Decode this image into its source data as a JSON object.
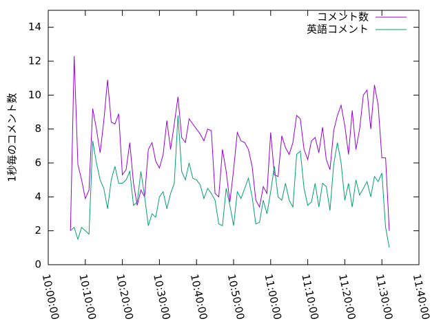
{
  "chart_data": {
    "type": "line",
    "ylabel": "1秒毎のコメント数",
    "x": [
      "10:06:00",
      "10:07:00",
      "10:08:00",
      "10:09:00",
      "10:10:00",
      "10:11:00",
      "10:12:00",
      "10:13:00",
      "10:14:00",
      "10:15:00",
      "10:16:00",
      "10:17:00",
      "10:18:00",
      "10:19:00",
      "10:20:00",
      "10:21:00",
      "10:22:00",
      "10:23:00",
      "10:24:00",
      "10:25:00",
      "10:26:00",
      "10:27:00",
      "10:28:00",
      "10:29:00",
      "10:30:00",
      "10:31:00",
      "10:32:00",
      "10:33:00",
      "10:34:00",
      "10:35:00",
      "10:36:00",
      "10:37:00",
      "10:38:00",
      "10:39:00",
      "10:40:00",
      "10:41:00",
      "10:42:00",
      "10:43:00",
      "10:44:00",
      "10:45:00",
      "10:46:00",
      "10:47:00",
      "10:48:00",
      "10:49:00",
      "10:50:00",
      "10:51:00",
      "10:52:00",
      "10:53:00",
      "10:54:00",
      "10:55:00",
      "10:56:00",
      "10:57:00",
      "10:58:00",
      "10:59:00",
      "11:00:00",
      "11:01:00",
      "11:02:00",
      "11:03:00",
      "11:04:00",
      "11:05:00",
      "11:06:00",
      "11:07:00",
      "11:08:00",
      "11:09:00",
      "11:10:00",
      "11:11:00",
      "11:12:00",
      "11:13:00",
      "11:14:00",
      "11:15:00",
      "11:16:00",
      "11:17:00",
      "11:18:00",
      "11:19:00",
      "11:20:00",
      "11:21:00",
      "11:22:00",
      "11:23:00",
      "11:24:00",
      "11:25:00",
      "11:26:00",
      "11:27:00",
      "11:28:00",
      "11:29:00",
      "11:30:00",
      "11:31:00",
      "11:32:00"
    ],
    "series": [
      {
        "name": "コメント数",
        "color": "#9400d3",
        "values": [
          2.0,
          12.3,
          5.9,
          5.0,
          3.9,
          4.4,
          9.2,
          8.0,
          6.6,
          8.5,
          10.9,
          8.4,
          8.3,
          8.9,
          5.3,
          5.6,
          7.2,
          4.8,
          3.5,
          4.4,
          4.0,
          6.8,
          7.2,
          6.1,
          5.7,
          6.5,
          8.5,
          6.8,
          8.3,
          9.9,
          7.5,
          7.2,
          8.6,
          8.3,
          8.0,
          7.7,
          7.3,
          8.0,
          7.9,
          4.2,
          4.0,
          6.8,
          5.5,
          3.7,
          5.6,
          7.8,
          7.3,
          7.2,
          6.8,
          5.8,
          3.8,
          3.4,
          4.6,
          4.2,
          7.8,
          5.3,
          5.2,
          7.6,
          6.9,
          6.5,
          7.2,
          8.8,
          8.6,
          6.8,
          6.2,
          7.3,
          7.5,
          6.6,
          8.1,
          6.2,
          5.6,
          7.9,
          8.8,
          9.4,
          8.2,
          6.5,
          9.1,
          6.8,
          8.0,
          10.0,
          10.3,
          8.0,
          10.6,
          9.4,
          6.3,
          6.3,
          2.0
        ]
      },
      {
        "name": "英語コメント",
        "color": "#009e73",
        "values": [
          2.0,
          2.2,
          1.5,
          2.2,
          2.0,
          1.8,
          7.3,
          6.0,
          5.0,
          4.5,
          3.3,
          5.0,
          5.8,
          4.8,
          4.8,
          5.0,
          5.5,
          3.5,
          3.7,
          5.5,
          4.0,
          2.3,
          3.0,
          2.8,
          4.0,
          4.3,
          3.3,
          4.2,
          4.8,
          8.8,
          5.5,
          5.0,
          6.0,
          5.1,
          5.0,
          4.7,
          3.9,
          4.5,
          4.2,
          3.8,
          2.4,
          2.3,
          4.5,
          3.5,
          2.3,
          4.3,
          3.9,
          4.5,
          5.1,
          4.0,
          2.4,
          2.5,
          3.8,
          3.0,
          4.3,
          5.8,
          4.0,
          3.8,
          4.8,
          3.8,
          3.4,
          6.5,
          6.7,
          4.5,
          3.5,
          3.7,
          4.8,
          3.4,
          4.8,
          4.6,
          3.2,
          5.9,
          7.2,
          6.0,
          3.8,
          4.8,
          3.4,
          5.0,
          4.1,
          4.5,
          4.9,
          4.0,
          5.2,
          4.9,
          5.4,
          2.2,
          1.0
        ]
      }
    ],
    "xlim": [
      "10:00:00",
      "11:40:00"
    ],
    "xticks": [
      "10:00:00",
      "10:10:00",
      "10:20:00",
      "10:30:00",
      "10:40:00",
      "10:50:00",
      "11:00:00",
      "11:10:00",
      "11:20:00",
      "11:30:00",
      "11:40:00"
    ],
    "ylim": [
      0,
      15
    ],
    "yticks": [
      0,
      2,
      4,
      6,
      8,
      10,
      12,
      14
    ],
    "legend": "top right"
  }
}
